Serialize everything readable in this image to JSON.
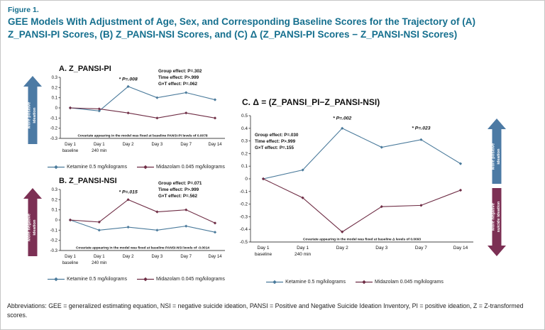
{
  "figure": {
    "label": "Figure 1.",
    "title": "GEE Models With Adjustment of Age, Sex, and Corresponding Baseline Scores for the Trajectory of (A) Z_PANSI-PI Scores, (B) Z_PANSI-NSI Scores, and (C) Δ (Z_PANSI-PI Scores − Z_PANSI-NSI Scores)"
  },
  "abbreviations": "Abbreviations: GEE = generalized estimating equation, NSI = negative suicide ideation, PANSI = Positive and Negative Suicide Ideation Inventory, PI = positive ideation, Z = Z-transformed scores.",
  "legend": {
    "ketamine": "Ketamine 0.5 mg/kilograms",
    "midazolam": "Midazolam 0.045 mg/kilograms"
  },
  "colors": {
    "teal": "#156f8e",
    "ketamine": "#4a7a9b",
    "midazolam": "#6e2c44",
    "arrow_positive": "#4c7aa4",
    "arrow_negative": "#7c3054"
  },
  "chart_data": [
    {
      "id": "A",
      "type": "line",
      "title": "A. Z_PANSI-PI",
      "categories": [
        [
          "Day 1",
          "baseline"
        ],
        [
          "Day 1",
          "240 min"
        ],
        [
          "Day 2"
        ],
        [
          "Day 3"
        ],
        [
          "Day 7"
        ],
        [
          "Day 14"
        ]
      ],
      "ylim": [
        -0.3,
        0.3
      ],
      "ystep": 0.1,
      "series": [
        {
          "name": "Ketamine 0.5 mg/kilograms",
          "color_key": "ketamine",
          "values": [
            0,
            -0.03,
            0.21,
            0.1,
            0.15,
            0.08
          ]
        },
        {
          "name": "Midazolam 0.045 mg/kilograms",
          "color_key": "midazolam",
          "values": [
            0,
            -0.01,
            -0.05,
            -0.1,
            -0.05,
            -0.1
          ]
        }
      ],
      "annotations": [
        "Group effect: P=.302",
        "Time effect: P>.999",
        "G×T effect: P=.062"
      ],
      "sig": [
        {
          "i": 2,
          "y": 0.27,
          "label": "* P=.008"
        }
      ],
      "note": "Covariate appearing in the model was fixed at baseline PANSI-PI levels of 0.0078",
      "arrow": {
        "direction": "up",
        "color_key": "arrow_positive",
        "label": [
          "More positive",
          "ideation"
        ]
      }
    },
    {
      "id": "B",
      "type": "line",
      "title": "B. Z_PANSI-NSI",
      "categories": [
        [
          "Day 1",
          "baseline"
        ],
        [
          "Day 1",
          "240 min"
        ],
        [
          "Day 2"
        ],
        [
          "Day 3"
        ],
        [
          "Day 7"
        ],
        [
          "Day 14"
        ]
      ],
      "ylim": [
        -0.3,
        0.3
      ],
      "ystep": 0.1,
      "series": [
        {
          "name": "Ketamine 0.5 mg/kilograms",
          "color_key": "ketamine",
          "values": [
            0,
            -0.1,
            -0.07,
            -0.1,
            -0.06,
            -0.12
          ]
        },
        {
          "name": "Midazolam 0.045 mg/kilograms",
          "color_key": "midazolam",
          "values": [
            0,
            -0.02,
            0.2,
            0.08,
            0.1,
            -0.03
          ]
        }
      ],
      "annotations": [
        "Group effect: P=.071",
        "Time effect: P>.999",
        "G×T effect: P=.562"
      ],
      "sig": [
        {
          "i": 2,
          "y": 0.26,
          "label": "* P=.015"
        }
      ],
      "note": "Covariate appearing in the model was fixed at baseline PANSI-NSI levels of -0.0014",
      "arrow": {
        "direction": "up",
        "color_key": "arrow_negative",
        "label": [
          "More negative",
          "ideation"
        ]
      }
    },
    {
      "id": "C",
      "type": "line",
      "title": "C. Δ = (Z_PANSI_PI−Z_PANSI-NSI)",
      "categories": [
        [
          "Day 1",
          "baseline"
        ],
        [
          "Day 1",
          "240 min"
        ],
        [
          "Day 2"
        ],
        [
          "Day 3"
        ],
        [
          "Day 7"
        ],
        [
          "Day 14"
        ]
      ],
      "ylim": [
        -0.5,
        0.5
      ],
      "ystep": 0.1,
      "series": [
        {
          "name": "Ketamine 0.5 mg/kilograms",
          "color_key": "ketamine",
          "values": [
            0,
            0.07,
            0.4,
            0.25,
            0.31,
            0.12
          ]
        },
        {
          "name": "Midazolam 0.045 mg/kilograms",
          "color_key": "midazolam",
          "values": [
            0,
            -0.15,
            -0.42,
            -0.22,
            -0.21,
            -0.09
          ]
        }
      ],
      "annotations": [
        "Group effect: P=.030",
        "Time effect: P>.999",
        "G×T effect: P=.155"
      ],
      "sig": [
        {
          "i": 2,
          "y": 0.47,
          "label": "* P=.002"
        },
        {
          "i": 4,
          "y": 0.39,
          "label": "* P=.023"
        }
      ],
      "note": "Covariate appearing in the model was fixed at baseline Δ levels of 0.0093",
      "arrows": [
        {
          "direction": "up",
          "color_key": "arrow_positive",
          "label": [
            "More positive",
            "ideation"
          ]
        },
        {
          "direction": "down",
          "color_key": "arrow_negative",
          "label": [
            "More negative",
            "suicide ideation"
          ]
        }
      ]
    }
  ]
}
